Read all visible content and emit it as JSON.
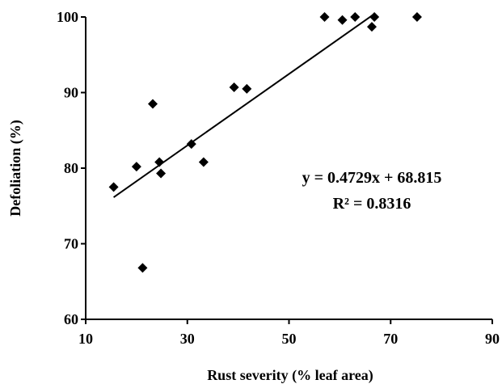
{
  "chart_data": {
    "type": "scatter",
    "title": "",
    "xlabel": "Rust severity (% leaf area)",
    "ylabel": "Defoliation (%)",
    "xlim": [
      10,
      90
    ],
    "ylim": [
      60,
      100
    ],
    "x_ticks": [
      "10",
      "30",
      "50",
      "70",
      "90"
    ],
    "y_ticks": [
      "60",
      "70",
      "80",
      "90",
      "100"
    ],
    "grid": false,
    "marker": "diamond",
    "color": "#000000",
    "series": [
      {
        "points": [
          [
            15.5,
            77.5
          ],
          [
            20,
            80.2
          ],
          [
            21.2,
            66.8
          ],
          [
            23.2,
            88.5
          ],
          [
            24.5,
            80.8
          ],
          [
            24.8,
            79.3
          ],
          [
            30.8,
            83.2
          ],
          [
            33.2,
            80.8
          ],
          [
            39.2,
            90.7
          ],
          [
            41.7,
            90.5
          ],
          [
            57,
            100
          ],
          [
            60.5,
            99.6
          ],
          [
            63,
            100
          ],
          [
            66.3,
            98.7
          ],
          [
            66.8,
            100
          ],
          [
            75.2,
            100
          ]
        ]
      }
    ],
    "trendline": {
      "slope": 0.4729,
      "intercept": 68.815,
      "x_range": [
        15.5,
        66.8
      ]
    },
    "annotations": {
      "equation": "y = 0.4729x + 68.815",
      "r_squared": "R² = 0.8316"
    }
  }
}
